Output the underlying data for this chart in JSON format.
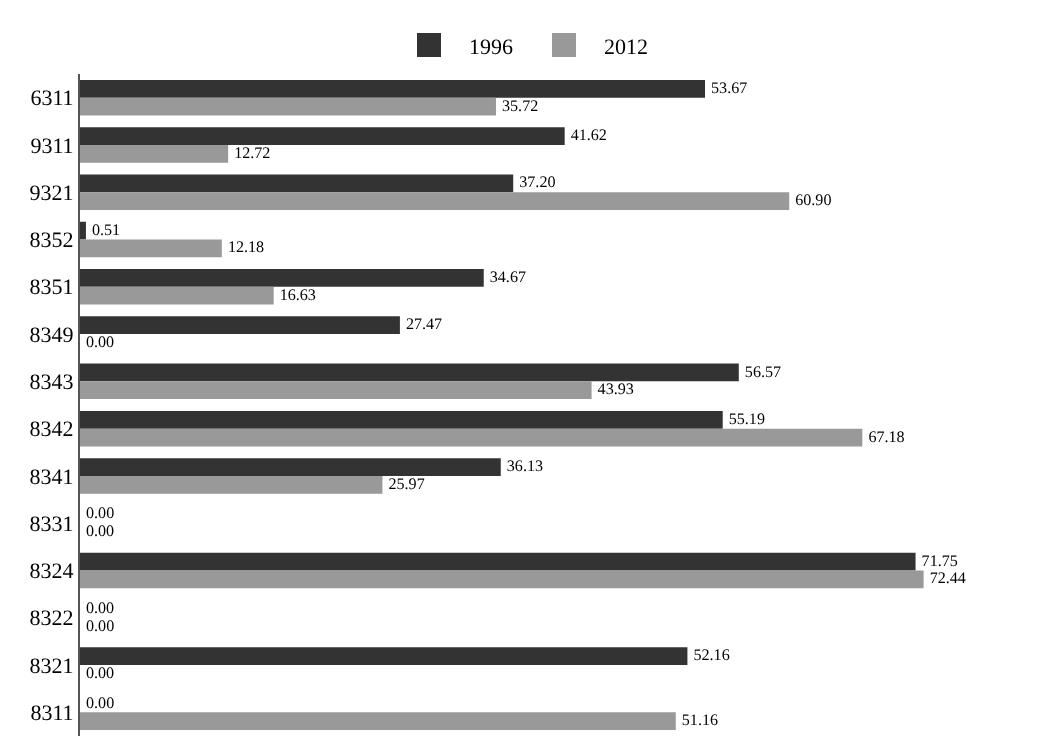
{
  "chart_data": {
    "type": "bar",
    "orientation": "horizontal",
    "legend": "top",
    "categories": [
      "6311",
      "9311",
      "9321",
      "8352",
      "8351",
      "8349",
      "8343",
      "8342",
      "8341",
      "8331",
      "8324",
      "8322",
      "8321",
      "8311"
    ],
    "series": [
      {
        "name": "1996",
        "color": "#333333",
        "values": [
          53.67,
          41.62,
          37.2,
          0.51,
          34.67,
          27.47,
          56.57,
          55.19,
          36.13,
          0,
          71.75,
          0,
          52.16,
          0
        ],
        "value_labels": [
          "53.67",
          "41.62",
          "37.20",
          "0.51",
          "34.67",
          "27.47",
          "56.57",
          "55.19",
          "36.13",
          "0.00",
          "71.75",
          "0.00",
          "52.16",
          "0.00"
        ]
      },
      {
        "name": "2012",
        "color": "#999999",
        "values": [
          35.72,
          12.72,
          60.9,
          12.18,
          16.63,
          0,
          43.93,
          67.18,
          25.97,
          0,
          72.44,
          0,
          0,
          51.16
        ],
        "value_labels": [
          "35.72",
          "12.72",
          "60.90",
          "12.18",
          "16.63",
          "0.00",
          "43.93",
          "67.18",
          "25.97",
          "0.00",
          "72.44",
          "0.00",
          "0.00",
          "51.16"
        ]
      }
    ]
  }
}
